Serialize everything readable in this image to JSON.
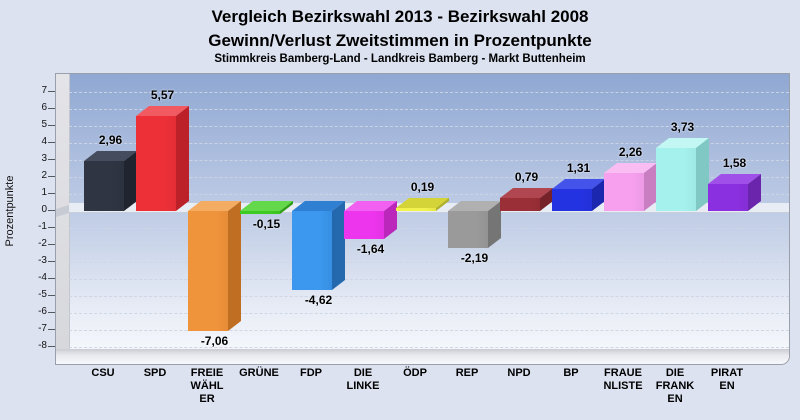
{
  "header": {
    "title_line1": "Vergleich Bezirkswahl 2013 - Bezirkswahl 2008",
    "title_line2": "Gewinn/Verlust Zweitstimmen in Prozentpunkte",
    "subtitle": "Stimmkreis Bamberg-Land - Landkreis Bamberg - Markt Buttenheim"
  },
  "chart_data": {
    "type": "bar",
    "title": "Vergleich Bezirkswahl 2013 - Bezirkswahl 2008 — Gewinn/Verlust Zweitstimmen in Prozentpunkte",
    "subtitle": "Stimmkreis Bamberg-Land - Landkreis Bamberg - Markt Buttenheim",
    "ylabel": "Prozentpunkte",
    "xlabel": "",
    "ylim": [
      -8,
      7
    ],
    "ytick_step": 1,
    "grid": "horizontal-dashed",
    "legend": "none",
    "style": "3d-bars",
    "ids": [
      "csu",
      "spd",
      "freie-waehler",
      "gruene",
      "fdp",
      "die-linke",
      "oedp",
      "rep",
      "npd",
      "bp",
      "frauenliste",
      "die-franken",
      "piraten"
    ],
    "categories": [
      "CSU",
      "SPD",
      "FREIE\nWÄHL\nER",
      "GRÜNE",
      "FDP",
      "DIE\nLINKE",
      "ÖDP",
      "REP",
      "NPD",
      "BP",
      "FRAUE\nNLISTE",
      "DIE\nFRANK\nEN",
      "PIRAT\nEN"
    ],
    "values": [
      2.96,
      5.57,
      -7.06,
      -0.15,
      -4.62,
      -1.64,
      0.19,
      -2.19,
      0.79,
      1.31,
      2.26,
      3.73,
      1.58
    ],
    "value_labels": [
      "2,96",
      "5,57",
      "-7,06",
      "-0,15",
      "-4,62",
      "-1,64",
      "0,19",
      "-2,19",
      "0,79",
      "1,31",
      "2,26",
      "3,73",
      "1,58"
    ],
    "colors": [
      {
        "front": "#2f3542",
        "top": "#454c5e",
        "side": "#1f242e"
      },
      {
        "front": "#ed3038",
        "top": "#f25a61",
        "side": "#bc2129"
      },
      {
        "front": "#f0943c",
        "top": "#f4ab62",
        "side": "#c06f22"
      },
      {
        "front": "#3ecb1f",
        "top": "#63d84a",
        "side": "#2f9c16"
      },
      {
        "front": "#3b98ee",
        "top": "#2f7fd2",
        "side": "#2468ae"
      },
      {
        "front": "#ee35ee",
        "top": "#f260f2",
        "side": "#ba27ba"
      },
      {
        "front": "#f2f24e",
        "top": "#d4d438",
        "side": "#b0b02c"
      },
      {
        "front": "#9a9a9a",
        "top": "#b0b0b0",
        "side": "#757575"
      },
      {
        "front": "#9b2f37",
        "top": "#b04750",
        "side": "#762229"
      },
      {
        "front": "#2433e2",
        "top": "#4453ea",
        "side": "#1b27ae"
      },
      {
        "front": "#f6a0ee",
        "top": "#f9bdf3",
        "side": "#c97ec2"
      },
      {
        "front": "#a5f1ed",
        "top": "#c2f7f4",
        "side": "#7fc8c4"
      },
      {
        "front": "#8b30e0",
        "top": "#a050e8",
        "side": "#6b24ac"
      }
    ]
  }
}
